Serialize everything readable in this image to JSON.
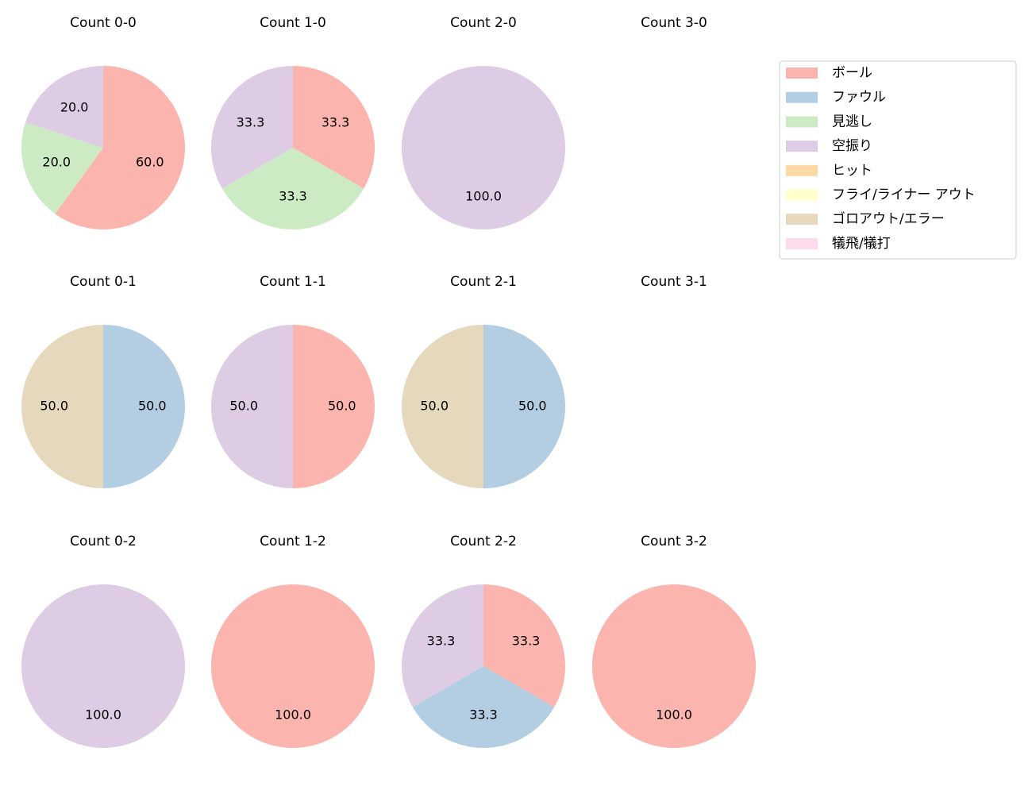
{
  "legend": {
    "labels": [
      "ボール",
      "ファウル",
      "見逃し",
      "空振り",
      "ヒット",
      "フライ/ライナー アウト",
      "ゴロアウト/エラー",
      "犠飛/犠打"
    ],
    "colors": [
      "#fbb4ae",
      "#b3cde3",
      "#ccebc5",
      "#decbe4",
      "#fed9a6",
      "#ffffcc",
      "#e5d8bd",
      "#fddaec"
    ]
  },
  "chart_data": [
    {
      "type": "pie",
      "title": "Count 0-0",
      "categories": [
        "ボール",
        "見逃し",
        "空振り"
      ],
      "values": [
        60,
        20,
        20
      ],
      "value_labels": [
        "60.0",
        "20.0",
        "20.0"
      ]
    },
    {
      "type": "pie",
      "title": "Count 1-0",
      "categories": [
        "ボール",
        "見逃し",
        "空振り"
      ],
      "values": [
        33.3,
        33.3,
        33.3
      ],
      "value_labels": [
        "33.3",
        "33.3",
        "33.3"
      ]
    },
    {
      "type": "pie",
      "title": "Count 2-0",
      "categories": [
        "空振り"
      ],
      "values": [
        100
      ],
      "value_labels": [
        "100.0"
      ]
    },
    {
      "type": "pie",
      "title": "Count 3-0",
      "categories": [],
      "values": [],
      "value_labels": []
    },
    {
      "type": "pie",
      "title": "Count 0-1",
      "categories": [
        "ファウル",
        "ゴロアウト/エラー"
      ],
      "values": [
        50,
        50
      ],
      "value_labels": [
        "50.0",
        "50.0"
      ]
    },
    {
      "type": "pie",
      "title": "Count 1-1",
      "categories": [
        "ボール",
        "空振り"
      ],
      "values": [
        50,
        50
      ],
      "value_labels": [
        "50.0",
        "50.0"
      ]
    },
    {
      "type": "pie",
      "title": "Count 2-1",
      "categories": [
        "ファウル",
        "ゴロアウト/エラー"
      ],
      "values": [
        50,
        50
      ],
      "value_labels": [
        "50.0",
        "50.0"
      ]
    },
    {
      "type": "pie",
      "title": "Count 3-1",
      "categories": [],
      "values": [],
      "value_labels": []
    },
    {
      "type": "pie",
      "title": "Count 0-2",
      "categories": [
        "空振り"
      ],
      "values": [
        100
      ],
      "value_labels": [
        "100.0"
      ]
    },
    {
      "type": "pie",
      "title": "Count 1-2",
      "categories": [
        "ボール"
      ],
      "values": [
        100
      ],
      "value_labels": [
        "100.0"
      ]
    },
    {
      "type": "pie",
      "title": "Count 2-2",
      "categories": [
        "ボール",
        "ファウル",
        "空振り"
      ],
      "values": [
        33.3,
        33.3,
        33.3
      ],
      "value_labels": [
        "33.3",
        "33.3",
        "33.3"
      ]
    },
    {
      "type": "pie",
      "title": "Count 3-2",
      "categories": [
        "ボール"
      ],
      "values": [
        100
      ],
      "value_labels": [
        "100.0"
      ]
    }
  ]
}
